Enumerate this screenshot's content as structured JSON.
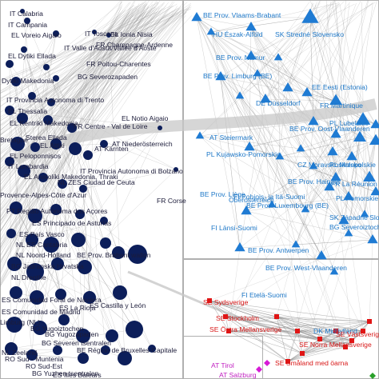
{
  "colors": {
    "cluster_dark": "#0c1e5a",
    "cluster_blue": "#1f7bd3",
    "cluster_red": "#e01515",
    "cluster_magenta": "#d61ad6",
    "cluster_green": "#2aa02a",
    "edge": "#8a8a8a",
    "grid": "#b0b0b0"
  },
  "node_shapes": {
    "dark": "circle",
    "blue": "triangle",
    "red": "square",
    "magenta": "diamond",
    "green": "diamond"
  },
  "labels": {
    "dark": [
      "IT Calabria",
      "IT Campania",
      "EL Voreio Aigaio",
      "IT Toscana",
      "EL Ionia Nisia",
      "FR Champagne-Ardenne",
      "EL Dytiki Ellada",
      "IT Valle d'Aosta/Vallée d'Aoste",
      "FR Poitou-Charentes",
      "Dytiki Makedonia",
      "BG Severozapaden",
      "IT Provincia Autonoma di Trento",
      "EL Thessalia",
      "EL Kentriki Makedonia",
      "EL Notio Aigaio",
      "FR Centre - Val de Loire",
      "Sterea Ellada",
      "Bretagne",
      "EL Attiki",
      "AT Kärnten",
      "EL Peloponnisos",
      "IT Lombardia",
      "EL Anatoliki Makedonia, Thraki",
      "IT Provincia Autonoma di Bolzano",
      "NL ZES Ciudad de Ceuta",
      "FR Corse",
      "Provence-Alpes-Côte d'Azur",
      "PT Região Autónoma dos Açores",
      "ES Principado de Asturias",
      "ES País Vasco",
      "NL ES Cantabria",
      "NL Noord-Holland",
      "BG Jadranska Hrvatska",
      "NL Drenthe",
      "BE Prov. Brabant wallon",
      "ES Comunidad Foral de Navarra",
      "ES La Rioja",
      "ES Castilla y León",
      "ES Comunidad de Madrid",
      "Limburg (NL)",
      "BG Yugoiztochen",
      "BG Yugozapaden",
      "BG Severen tsentralen",
      "BE Région de Bruxelles-Capitale",
      "NL Zeeland",
      "RO Sud - Muntenia",
      "RO Sud-Est",
      "BG Yuzhen tsentralen",
      "ES Illes Balears",
      "AT Niederösterreich"
    ],
    "blue": [
      "BE Prov. Vlaams-Brabant",
      "HU Észak-Alföld",
      "SK Stredné Slovensko",
      "BE Prov. Namur",
      "BE Prov. Limburg (BE)",
      "DE Düsseldorf",
      "EE Eesti (Estonia)",
      "FR Martinique",
      "AT Steiermark",
      "PL Lubelskie",
      "BE Prov. Oost-Vlaanderen",
      "PL Kujawsko-Pomorskie",
      "CZ Moravskoslezsko",
      "BE Prov. Hainaut",
      "PL Małopolskie",
      "FR La Réunion",
      "BE Prov. Liège",
      "FI Pohjois- ja Itä-Suomi",
      "BE Prov. Luxembourg (BE)",
      "PL Pomorskie",
      "Oberösterreich",
      "SK Západné Slovensko",
      "BG Severoiztochen",
      "FI Länsi-Suomi",
      "BE Prov. Antwerpen",
      "BE Prov. West-Vlaanderen",
      "FI Etelä-Suomi",
      "DK Midtjylland"
    ],
    "red": [
      "SE Sydsverige",
      "SE Stockholm",
      "SE Östra Mellansverige",
      "SE Västsverige",
      "SE Norra Mellansverige",
      "SE Småland med öarna"
    ],
    "magenta": [
      "AT Tirol",
      "AT Salzburg"
    ]
  }
}
